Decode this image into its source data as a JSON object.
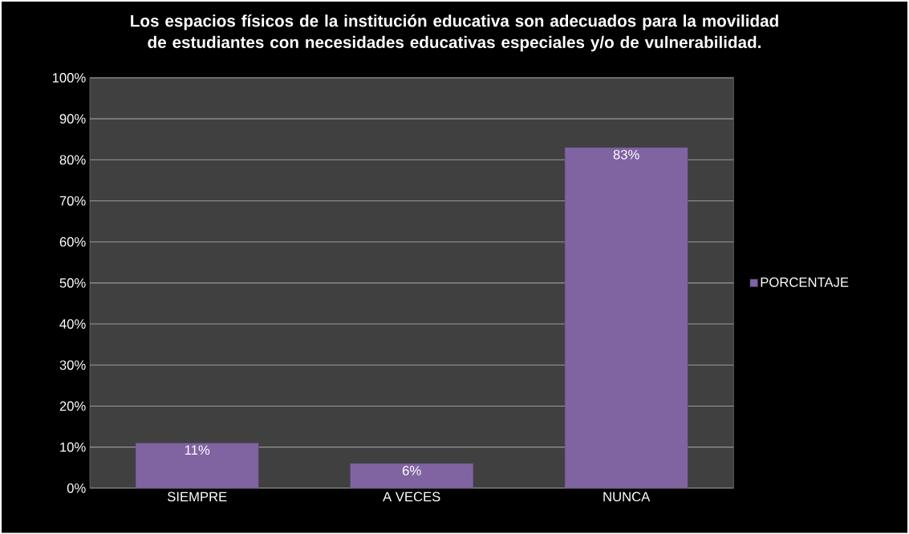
{
  "chart_data": {
    "type": "bar",
    "title": "Los espacios físicos de la institución educativa son adecuados para la movilidad de estudiantes con necesidades educativas especiales y/o de vulnerabilidad.",
    "categories": [
      "SIEMPRE",
      "A VECES",
      "NUNCA"
    ],
    "series": [
      {
        "name": "PORCENTAJE",
        "color": "#8064a2",
        "values": [
          11,
          6,
          83
        ],
        "value_labels": [
          "11%",
          "6%",
          "83%"
        ]
      }
    ],
    "ylim": [
      0,
      100
    ],
    "yticks": [
      {
        "value": 0,
        "label": "0%"
      },
      {
        "value": 10,
        "label": "10%"
      },
      {
        "value": 20,
        "label": "20%"
      },
      {
        "value": 30,
        "label": "30%"
      },
      {
        "value": 40,
        "label": "40%"
      },
      {
        "value": 50,
        "label": "50%"
      },
      {
        "value": 60,
        "label": "60%"
      },
      {
        "value": 70,
        "label": "70%"
      },
      {
        "value": 80,
        "label": "80%"
      },
      {
        "value": 90,
        "label": "90%"
      },
      {
        "value": 100,
        "label": "100%"
      }
    ],
    "grid": "y",
    "legend": "right"
  }
}
